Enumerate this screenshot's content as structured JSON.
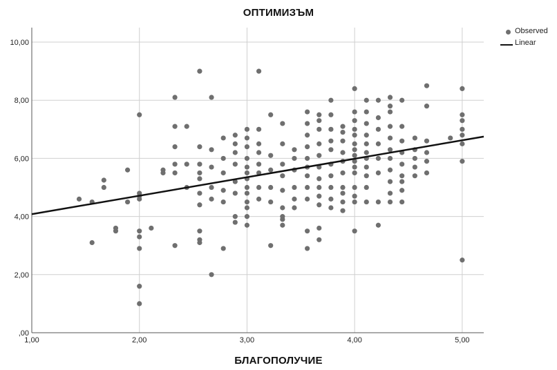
{
  "chart_data": {
    "type": "scatter",
    "title": "ОПТИМИЗЪМ",
    "xlabel": "БЛАГОПОЛУЧИЕ",
    "ylabel": "",
    "xlim": [
      1.0,
      5.2
    ],
    "ylim": [
      0.0,
      10.5
    ],
    "x_ticks": [
      "1,00",
      "2,00",
      "3,00",
      "4,00",
      "5,00"
    ],
    "y_ticks": [
      ",00",
      "2,00",
      "4,00",
      "6,00",
      "8,00",
      "10,00"
    ],
    "grid": true,
    "legend": "top-right",
    "legend_entries": [
      "Observed",
      "Linear"
    ],
    "series": [
      {
        "name": "Observed",
        "points": [
          [
            1.44,
            4.6
          ],
          [
            1.56,
            3.1
          ],
          [
            1.56,
            4.5
          ],
          [
            1.67,
            5.0
          ],
          [
            1.67,
            5.25
          ],
          [
            1.78,
            3.5
          ],
          [
            1.78,
            3.6
          ],
          [
            1.89,
            5.6
          ],
          [
            1.89,
            4.5
          ],
          [
            2.0,
            7.5
          ],
          [
            2.0,
            4.8
          ],
          [
            2.0,
            4.7
          ],
          [
            2.0,
            4.6
          ],
          [
            2.0,
            3.5
          ],
          [
            2.0,
            3.3
          ],
          [
            2.0,
            2.9
          ],
          [
            2.0,
            1.6
          ],
          [
            2.0,
            1.0
          ],
          [
            2.11,
            3.6
          ],
          [
            2.22,
            5.6
          ],
          [
            2.22,
            5.5
          ],
          [
            2.33,
            8.1
          ],
          [
            2.33,
            7.1
          ],
          [
            2.33,
            6.4
          ],
          [
            2.33,
            5.8
          ],
          [
            2.33,
            5.5
          ],
          [
            2.33,
            3.0
          ],
          [
            2.44,
            7.1
          ],
          [
            2.44,
            5.8
          ],
          [
            2.44,
            5.0
          ],
          [
            2.56,
            9.0
          ],
          [
            2.56,
            6.4
          ],
          [
            2.56,
            5.8
          ],
          [
            2.56,
            5.5
          ],
          [
            2.56,
            5.3
          ],
          [
            2.56,
            4.8
          ],
          [
            2.56,
            4.4
          ],
          [
            2.56,
            3.5
          ],
          [
            2.56,
            3.2
          ],
          [
            2.56,
            3.1
          ],
          [
            2.67,
            8.1
          ],
          [
            2.67,
            6.3
          ],
          [
            2.67,
            5.7
          ],
          [
            2.67,
            5.0
          ],
          [
            2.67,
            4.6
          ],
          [
            2.67,
            2.0
          ],
          [
            2.78,
            6.7
          ],
          [
            2.78,
            6.0
          ],
          [
            2.78,
            5.5
          ],
          [
            2.78,
            4.9
          ],
          [
            2.78,
            4.5
          ],
          [
            2.78,
            2.9
          ],
          [
            2.89,
            6.8
          ],
          [
            2.89,
            6.5
          ],
          [
            2.89,
            6.2
          ],
          [
            2.89,
            5.8
          ],
          [
            2.89,
            5.2
          ],
          [
            2.89,
            4.8
          ],
          [
            2.89,
            4.0
          ],
          [
            2.89,
            3.8
          ],
          [
            3.0,
            7.0
          ],
          [
            3.0,
            6.7
          ],
          [
            3.0,
            6.4
          ],
          [
            3.0,
            6.0
          ],
          [
            3.0,
            5.7
          ],
          [
            3.0,
            5.5
          ],
          [
            3.0,
            5.3
          ],
          [
            3.0,
            5.0
          ],
          [
            3.0,
            4.8
          ],
          [
            3.0,
            4.5
          ],
          [
            3.0,
            4.3
          ],
          [
            3.0,
            4.0
          ],
          [
            3.0,
            3.7
          ],
          [
            3.11,
            9.0
          ],
          [
            3.11,
            7.0
          ],
          [
            3.11,
            6.5
          ],
          [
            3.11,
            6.2
          ],
          [
            3.11,
            5.8
          ],
          [
            3.11,
            5.5
          ],
          [
            3.11,
            5.0
          ],
          [
            3.11,
            4.6
          ],
          [
            3.22,
            7.5
          ],
          [
            3.22,
            6.1
          ],
          [
            3.22,
            5.6
          ],
          [
            3.22,
            5.0
          ],
          [
            3.22,
            4.5
          ],
          [
            3.22,
            3.0
          ],
          [
            3.33,
            7.2
          ],
          [
            3.33,
            6.5
          ],
          [
            3.33,
            5.8
          ],
          [
            3.33,
            5.4
          ],
          [
            3.33,
            4.9
          ],
          [
            3.33,
            4.3
          ],
          [
            3.33,
            4.0
          ],
          [
            3.33,
            3.9
          ],
          [
            3.33,
            3.7
          ],
          [
            3.44,
            6.3
          ],
          [
            3.44,
            6.0
          ],
          [
            3.44,
            5.6
          ],
          [
            3.44,
            5.0
          ],
          [
            3.44,
            4.6
          ],
          [
            3.44,
            4.3
          ],
          [
            3.56,
            7.6
          ],
          [
            3.56,
            7.2
          ],
          [
            3.56,
            6.8
          ],
          [
            3.56,
            6.4
          ],
          [
            3.56,
            6.0
          ],
          [
            3.56,
            5.7
          ],
          [
            3.56,
            5.4
          ],
          [
            3.56,
            5.0
          ],
          [
            3.56,
            4.6
          ],
          [
            3.56,
            3.5
          ],
          [
            3.56,
            2.9
          ],
          [
            3.67,
            7.5
          ],
          [
            3.67,
            7.3
          ],
          [
            3.67,
            7.0
          ],
          [
            3.67,
            6.5
          ],
          [
            3.67,
            6.1
          ],
          [
            3.67,
            5.7
          ],
          [
            3.67,
            5.3
          ],
          [
            3.67,
            5.0
          ],
          [
            3.67,
            4.7
          ],
          [
            3.67,
            4.4
          ],
          [
            3.67,
            3.6
          ],
          [
            3.67,
            3.2
          ],
          [
            3.78,
            8.0
          ],
          [
            3.78,
            7.5
          ],
          [
            3.78,
            7.0
          ],
          [
            3.78,
            6.6
          ],
          [
            3.78,
            6.3
          ],
          [
            3.78,
            5.8
          ],
          [
            3.78,
            5.4
          ],
          [
            3.78,
            5.0
          ],
          [
            3.78,
            4.6
          ],
          [
            3.78,
            4.3
          ],
          [
            3.89,
            7.1
          ],
          [
            3.89,
            6.9
          ],
          [
            3.89,
            6.6
          ],
          [
            3.89,
            6.2
          ],
          [
            3.89,
            5.9
          ],
          [
            3.89,
            5.5
          ],
          [
            3.89,
            5.0
          ],
          [
            3.89,
            4.8
          ],
          [
            3.89,
            4.5
          ],
          [
            3.89,
            4.2
          ],
          [
            4.0,
            8.4
          ],
          [
            4.0,
            7.6
          ],
          [
            4.0,
            7.3
          ],
          [
            4.0,
            7.0
          ],
          [
            4.0,
            6.8
          ],
          [
            4.0,
            6.5
          ],
          [
            4.0,
            6.3
          ],
          [
            4.0,
            6.1
          ],
          [
            4.0,
            5.9
          ],
          [
            4.0,
            5.7
          ],
          [
            4.0,
            5.5
          ],
          [
            4.0,
            5.0
          ],
          [
            4.0,
            4.7
          ],
          [
            4.0,
            4.5
          ],
          [
            4.0,
            3.5
          ],
          [
            4.11,
            8.0
          ],
          [
            4.11,
            7.6
          ],
          [
            4.11,
            7.2
          ],
          [
            4.11,
            6.8
          ],
          [
            4.11,
            6.5
          ],
          [
            4.11,
            6.2
          ],
          [
            4.11,
            6.0
          ],
          [
            4.11,
            5.7
          ],
          [
            4.11,
            5.4
          ],
          [
            4.11,
            5.0
          ],
          [
            4.11,
            4.5
          ],
          [
            4.22,
            8.0
          ],
          [
            4.22,
            7.4
          ],
          [
            4.22,
            7.0
          ],
          [
            4.22,
            6.5
          ],
          [
            4.22,
            6.0
          ],
          [
            4.22,
            5.5
          ],
          [
            4.22,
            4.5
          ],
          [
            4.22,
            3.7
          ],
          [
            4.33,
            8.1
          ],
          [
            4.33,
            7.8
          ],
          [
            4.33,
            7.6
          ],
          [
            4.33,
            7.1
          ],
          [
            4.33,
            6.7
          ],
          [
            4.33,
            6.3
          ],
          [
            4.33,
            6.0
          ],
          [
            4.33,
            5.6
          ],
          [
            4.33,
            5.2
          ],
          [
            4.33,
            4.8
          ],
          [
            4.33,
            4.5
          ],
          [
            4.44,
            8.0
          ],
          [
            4.44,
            7.1
          ],
          [
            4.44,
            6.6
          ],
          [
            4.44,
            6.2
          ],
          [
            4.44,
            5.8
          ],
          [
            4.44,
            5.4
          ],
          [
            4.44,
            5.2
          ],
          [
            4.44,
            4.9
          ],
          [
            4.44,
            4.5
          ],
          [
            4.56,
            6.7
          ],
          [
            4.56,
            6.3
          ],
          [
            4.56,
            6.0
          ],
          [
            4.56,
            5.7
          ],
          [
            4.56,
            5.4
          ],
          [
            4.67,
            8.5
          ],
          [
            4.67,
            7.8
          ],
          [
            4.67,
            6.6
          ],
          [
            4.67,
            6.2
          ],
          [
            4.67,
            5.9
          ],
          [
            4.67,
            5.5
          ],
          [
            4.89,
            6.7
          ],
          [
            5.0,
            8.4
          ],
          [
            5.0,
            7.5
          ],
          [
            5.0,
            7.3
          ],
          [
            5.0,
            7.0
          ],
          [
            5.0,
            6.8
          ],
          [
            5.0,
            6.5
          ],
          [
            5.0,
            5.9
          ],
          [
            5.0,
            2.5
          ]
        ]
      },
      {
        "name": "Linear",
        "line": [
          [
            1.0,
            4.08
          ],
          [
            5.2,
            6.75
          ]
        ]
      }
    ]
  },
  "colors": {
    "marker": "#6f6f6f",
    "fit_line": "#111111",
    "grid": "#cfcfcf",
    "axis": "#555555"
  }
}
